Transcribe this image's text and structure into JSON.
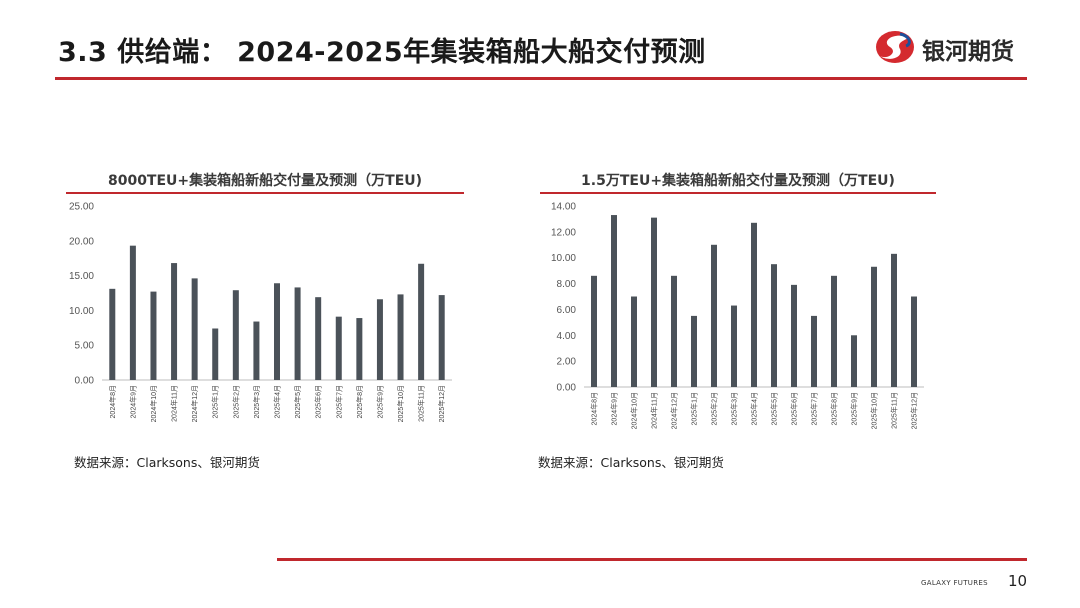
{
  "page": {
    "title": "3.3 供给端： 2024-2025年集装箱船大船交付预测",
    "logo_text": "银河期货",
    "footer_brand": "GALAXY FUTURES",
    "page_number": "10",
    "accent_color": "#c0282d",
    "bar_color": "#4b5259"
  },
  "sources": {
    "left": "数据来源：Clarksons、银河期货",
    "right": "数据来源：Clarksons、银河期货"
  },
  "chart_data": [
    {
      "type": "bar",
      "title": "8000TEU+集装箱船新船交付量及预测（万TEU)",
      "categories": [
        "2024年8月",
        "2024年9月",
        "2024年10月",
        "2024年11月",
        "2024年12月",
        "2025年1月",
        "2025年2月",
        "2025年3月",
        "2025年4月",
        "2025年5月",
        "2025年6月",
        "2025年7月",
        "2025年8月",
        "2025年9月",
        "2025年10月",
        "2025年11月",
        "2025年12月"
      ],
      "values": [
        13.1,
        19.3,
        12.7,
        16.8,
        14.6,
        7.4,
        12.9,
        8.4,
        13.9,
        13.3,
        11.9,
        9.1,
        8.9,
        11.6,
        12.3,
        16.7,
        12.2
      ],
      "yticks": [
        "0.00",
        "5.00",
        "10.00",
        "15.00",
        "20.00",
        "25.00"
      ],
      "ylim": [
        0,
        25
      ],
      "grid": false
    },
    {
      "type": "bar",
      "title": "1.5万TEU+集装箱船新船交付量及预测（万TEU)",
      "categories": [
        "2024年8月",
        "2024年9月",
        "2024年10月",
        "2024年11月",
        "2024年12月",
        "2025年1月",
        "2025年2月",
        "2025年3月",
        "2025年4月",
        "2025年5月",
        "2025年6月",
        "2025年7月",
        "2025年8月",
        "2025年9月",
        "2025年10月",
        "2025年11月",
        "2025年12月"
      ],
      "values": [
        8.6,
        13.3,
        7.0,
        13.1,
        8.6,
        5.5,
        11.0,
        6.3,
        12.7,
        9.5,
        7.9,
        5.5,
        8.6,
        4.0,
        9.3,
        10.3,
        7.0
      ],
      "yticks": [
        "0.00",
        "2.00",
        "4.00",
        "6.00",
        "8.00",
        "10.00",
        "12.00",
        "14.00"
      ],
      "ylim": [
        0,
        14
      ],
      "grid": false
    }
  ]
}
